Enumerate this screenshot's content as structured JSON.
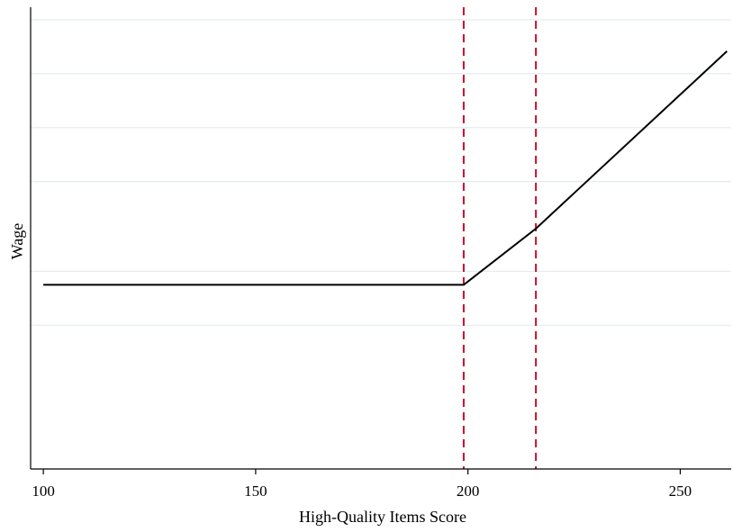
{
  "chart_data": {
    "type": "line",
    "title": "",
    "xlabel": "High-Quality Items Score",
    "ylabel": "Wage",
    "xlim": [
      97,
      262
    ],
    "ylim": [
      0,
      10
    ],
    "x_ticks": [
      100,
      150,
      200,
      250
    ],
    "x_tick_labels": [
      "100",
      "150",
      "200",
      "250"
    ],
    "y_tick_labels": [],
    "y_gridlines": [
      3.2,
      4.4,
      6.4,
      7.6,
      8.8,
      10
    ],
    "grid": true,
    "legend": "none",
    "series": [
      {
        "color": "#000000",
        "points": [
          {
            "x": 100,
            "y": 4.1
          },
          {
            "x": 199,
            "y": 4.1
          },
          {
            "x": 216,
            "y": 5.35
          },
          {
            "x": 261,
            "y": 9.3
          }
        ]
      }
    ],
    "vertical_lines": [
      {
        "x": 199,
        "color": "#c8102e",
        "style": "dashed"
      },
      {
        "x": 216,
        "color": "#c8102e",
        "style": "dashed"
      }
    ]
  }
}
